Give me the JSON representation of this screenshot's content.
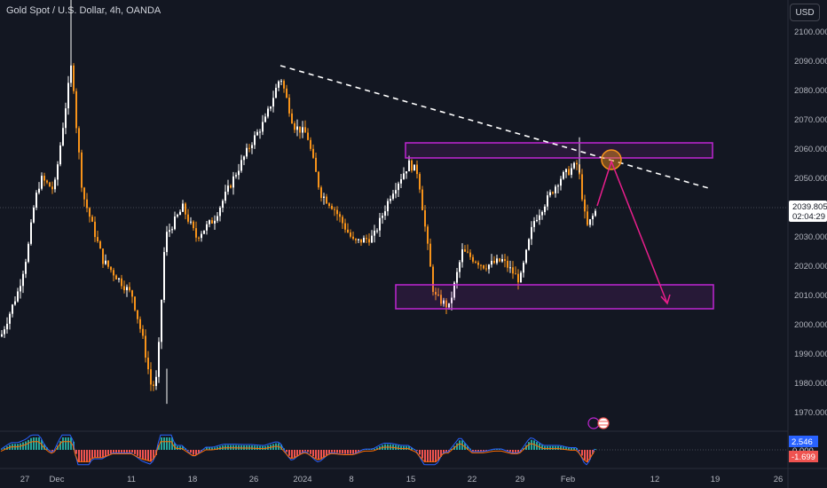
{
  "header": {
    "title": "Gold Spot / U.S. Dollar, 4h, OANDA",
    "currency_button": "USD"
  },
  "price_scale": {
    "ticks": [
      "2100.000",
      "2090.000",
      "2080.000",
      "2070.000",
      "2060.000",
      "2050.000",
      "2040.000",
      "2030.000",
      "2020.000",
      "2010.000",
      "2000.000",
      "1990.000",
      "1980.000",
      "1970.000"
    ],
    "current_price": "2039.805",
    "countdown": "02:04:29"
  },
  "time_axis": {
    "ticks": [
      "27",
      "Dec",
      "11",
      "18",
      "26",
      "2024",
      "8",
      "15",
      "22",
      "29",
      "Feb",
      "12",
      "19",
      "26"
    ]
  },
  "indicator": {
    "values": [
      "2.546",
      "0.000",
      "-1.699"
    ],
    "colors": {
      "positive": "#26a69a",
      "negative": "#ef5350",
      "macd_line": "#2962ff",
      "signal_line": "#ff6d00"
    }
  },
  "colors": {
    "background": "#131722",
    "candle_up": "#ffffff",
    "candle_down": "#f7931a",
    "zone": "#c026d3",
    "arrow": "#e91e8c",
    "trendline": "#ffffff",
    "circle": "#f7931a"
  },
  "chart_data": {
    "type": "candlestick",
    "instrument": "Gold Spot / U.S. Dollar",
    "timeframe": "4h",
    "ylim": [
      1965,
      2110
    ],
    "close_path": [
      {
        "x": "Nov 22",
        "y": 1996
      },
      {
        "x": "Nov 24",
        "y": 2012
      },
      {
        "x": "Nov 27",
        "y": 2025
      },
      {
        "x": "Nov 28",
        "y": 2042
      },
      {
        "x": "Nov 29",
        "y": 2050
      },
      {
        "x": "Dec 1",
        "y": 2046
      },
      {
        "x": "Dec 4",
        "y": 2090
      },
      {
        "x": "Dec 4",
        "y": 2068
      },
      {
        "x": "Dec 5",
        "y": 2045
      },
      {
        "x": "Dec 6",
        "y": 2032
      },
      {
        "x": "Dec 8",
        "y": 2022
      },
      {
        "x": "Dec 11",
        "y": 2010
      },
      {
        "x": "Dec 12",
        "y": 1995
      },
      {
        "x": "Dec 13",
        "y": 1978
      },
      {
        "x": "Dec 13",
        "y": 1982
      },
      {
        "x": "Dec 14",
        "y": 2030
      },
      {
        "x": "Dec 15",
        "y": 2040
      },
      {
        "x": "Dec 18",
        "y": 2030
      },
      {
        "x": "Dec 20",
        "y": 2036
      },
      {
        "x": "Dec 22",
        "y": 2050
      },
      {
        "x": "Dec 26",
        "y": 2062
      },
      {
        "x": "Dec 27",
        "y": 2070
      },
      {
        "x": "Dec 28",
        "y": 2085
      },
      {
        "x": "Dec 29",
        "y": 2068
      },
      {
        "x": "Jan 2",
        "y": 2065
      },
      {
        "x": "Jan 3",
        "y": 2045
      },
      {
        "x": "Jan 5",
        "y": 2040
      },
      {
        "x": "Jan 8",
        "y": 2028
      },
      {
        "x": "Jan 10",
        "y": 2030
      },
      {
        "x": "Jan 12",
        "y": 2045
      },
      {
        "x": "Jan 15",
        "y": 2055
      },
      {
        "x": "Jan 16",
        "y": 2052
      },
      {
        "x": "Jan 17",
        "y": 2010
      },
      {
        "x": "Jan 18",
        "y": 2006
      },
      {
        "x": "Jan 19",
        "y": 2025
      },
      {
        "x": "Jan 22",
        "y": 2020
      },
      {
        "x": "Jan 25",
        "y": 2022
      },
      {
        "x": "Jan 29",
        "y": 2015
      },
      {
        "x": "Jan 30",
        "y": 2035
      },
      {
        "x": "Feb 1",
        "y": 2050
      },
      {
        "x": "Feb 2",
        "y": 2055
      },
      {
        "x": "Feb 2",
        "y": 2033
      },
      {
        "x": "Feb 5",
        "y": 2039.805
      }
    ],
    "annotations": {
      "resistance_zone": {
        "from": 2057,
        "to": 2062
      },
      "support_zone": {
        "from": 2006,
        "to": 2014
      },
      "trendline": {
        "from": {
          "x": "Dec 28",
          "y": 2088
        },
        "to": {
          "x": "Feb 15",
          "y": 2046
        }
      },
      "projection_arrow": {
        "from": 2057,
        "to": 2007
      }
    }
  }
}
